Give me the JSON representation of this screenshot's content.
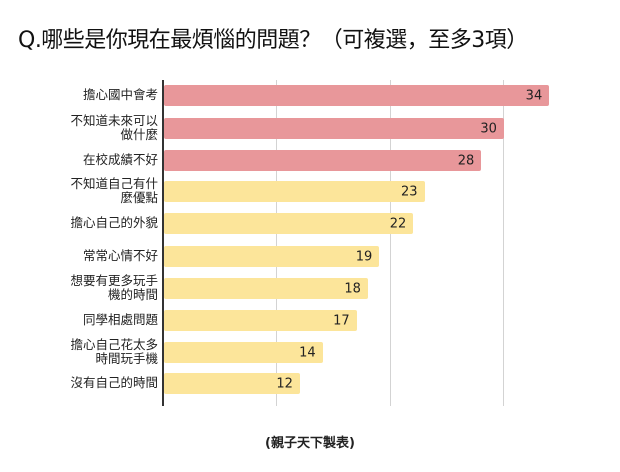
{
  "title": "Q.哪些是你現在最煩惱的問題？（可複選，至多3項）",
  "source": "(親子天下製表)",
  "colors": {
    "top3": "#E8979A",
    "rest": "#FCE59A",
    "axis": "#333333",
    "grid": "#D3D3D3"
  },
  "chart_data": {
    "type": "bar",
    "orientation": "horizontal",
    "title": "Q.哪些是你現在最煩惱的問題？（可複選，至多3項）",
    "xlabel": "",
    "ylabel": "",
    "xlim": [
      0,
      35
    ],
    "gridlines": [
      10,
      20,
      30
    ],
    "grid": true,
    "legend": null,
    "annotation": "(親子天下製表)",
    "categories": [
      "擔心國中會考",
      "不知道未來可以做什麼",
      "在校成績不好",
      "不知道自己有什麼優點",
      "擔心自己的外貌",
      "常常心情不好",
      "想要有更多玩手機的時間",
      "同學相處問題",
      "擔心自己花太多時間玩手機",
      "沒有自己的時間"
    ],
    "values": [
      34,
      30,
      28,
      23,
      22,
      19,
      18,
      17,
      14,
      12
    ],
    "bar_colors": [
      "#E8979A",
      "#E8979A",
      "#E8979A",
      "#FCE59A",
      "#FCE59A",
      "#FCE59A",
      "#FCE59A",
      "#FCE59A",
      "#FCE59A",
      "#FCE59A"
    ]
  },
  "rows": [
    {
      "label": "擔心國中會考",
      "value": "34"
    },
    {
      "label": "不知道未來可以\n做什麼",
      "value": "30"
    },
    {
      "label": "在校成績不好",
      "value": "28"
    },
    {
      "label": "不知道自己有什\n麼優點",
      "value": "23"
    },
    {
      "label": "擔心自己的外貌",
      "value": "22"
    },
    {
      "label": "常常心情不好",
      "value": "19"
    },
    {
      "label": "想要有更多玩手\n機的時間",
      "value": "18"
    },
    {
      "label": "同學相處問題",
      "value": "17"
    },
    {
      "label": "擔心自己花太多\n時間玩手機",
      "value": "14"
    },
    {
      "label": "沒有自己的時間",
      "value": "12"
    }
  ]
}
